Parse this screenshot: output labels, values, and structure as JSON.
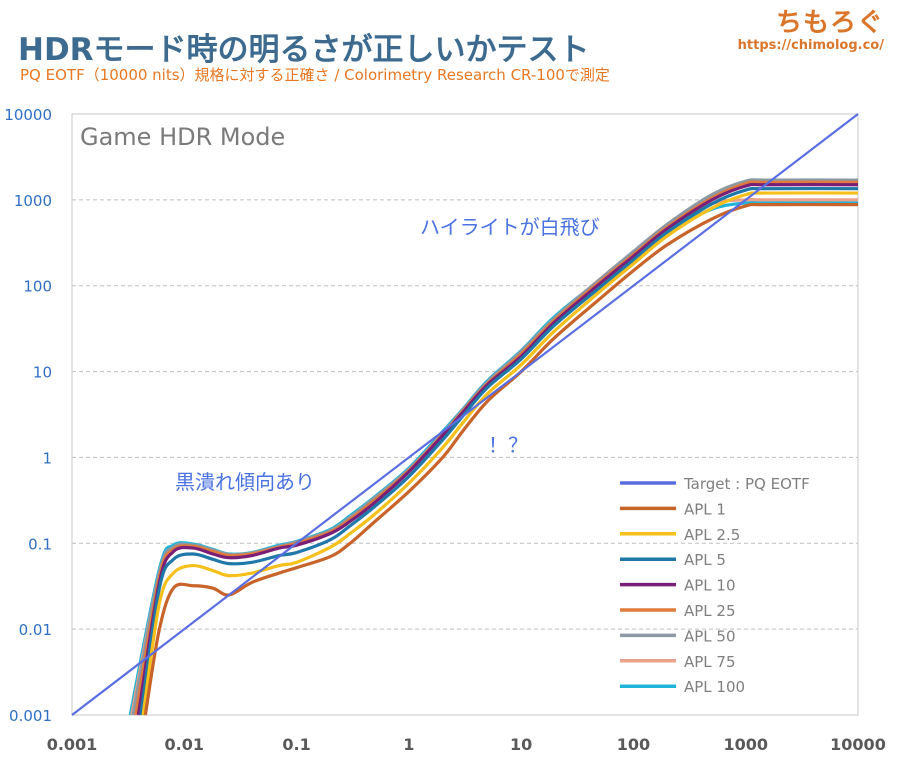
{
  "header": {
    "title": "HDRモード時の明るさが正しいかテスト",
    "subtitle": "PQ EOTF（10000 nits）規格に対する正確さ / Colorimetry Research CR-100で測定",
    "brand": "ちもろぐ",
    "brand_url": "https://chimolog.co/"
  },
  "chart_data": {
    "type": "line",
    "title": "Game HDR Mode",
    "x_scale": "log",
    "y_scale": "log",
    "xlim": [
      0.001,
      10000
    ],
    "ylim": [
      0.001,
      10000
    ],
    "x_ticks": [
      "0.001",
      "0.01",
      "0.1",
      "1",
      "10",
      "100",
      "1000",
      "10000"
    ],
    "y_ticks": [
      "0.001",
      "0.01",
      "0.1",
      "1",
      "10",
      "100",
      "1000",
      "10000"
    ],
    "grid": true,
    "legend_position": "bottom-right",
    "annotations": [
      "ハイライトが白飛び",
      "！？",
      "黒潰れ傾向あり"
    ],
    "annotation_color": "#4a72e0",
    "series": [
      {
        "name": "Target : PQ EOTF",
        "color": "#5b6ee1",
        "x": [
          0.001,
          10000
        ],
        "y": [
          0.001,
          10000
        ]
      },
      {
        "name": "APL 1",
        "color": "#c8642a",
        "x": [
          0.0045,
          0.006,
          0.008,
          0.012,
          0.018,
          0.025,
          0.04,
          0.07,
          0.1,
          0.2,
          0.3,
          0.5,
          1,
          2,
          3,
          5,
          10,
          20,
          50,
          100,
          200,
          500,
          1000,
          1500,
          10000
        ],
        "y": [
          0.001,
          0.01,
          0.03,
          0.032,
          0.03,
          0.025,
          0.035,
          0.045,
          0.052,
          0.07,
          0.1,
          0.18,
          0.4,
          1.0,
          2.0,
          4.5,
          10,
          25,
          70,
          150,
          300,
          600,
          850,
          880,
          880
        ]
      },
      {
        "name": "APL 2.5",
        "color": "#f5c01b",
        "x": [
          0.0043,
          0.006,
          0.008,
          0.012,
          0.018,
          0.025,
          0.04,
          0.07,
          0.1,
          0.2,
          0.3,
          0.5,
          1,
          2,
          3,
          5,
          10,
          20,
          50,
          100,
          200,
          500,
          1000,
          1500,
          10000
        ],
        "y": [
          0.001,
          0.02,
          0.045,
          0.055,
          0.048,
          0.042,
          0.045,
          0.055,
          0.06,
          0.09,
          0.13,
          0.22,
          0.5,
          1.3,
          2.5,
          5.5,
          12,
          30,
          85,
          180,
          380,
          800,
          1150,
          1200,
          1200
        ]
      },
      {
        "name": "APL 5",
        "color": "#1f78a8",
        "x": [
          0.0041,
          0.006,
          0.008,
          0.012,
          0.018,
          0.025,
          0.04,
          0.07,
          0.1,
          0.2,
          0.3,
          0.5,
          1,
          2,
          3,
          5,
          10,
          20,
          50,
          100,
          200,
          500,
          1000,
          1500,
          10000
        ],
        "y": [
          0.001,
          0.03,
          0.065,
          0.075,
          0.065,
          0.058,
          0.06,
          0.072,
          0.078,
          0.11,
          0.16,
          0.27,
          0.6,
          1.6,
          3.0,
          6.5,
          14,
          35,
          95,
          200,
          420,
          900,
          1300,
          1350,
          1350
        ]
      },
      {
        "name": "APL 10",
        "color": "#7a1f78",
        "x": [
          0.0039,
          0.006,
          0.008,
          0.012,
          0.018,
          0.025,
          0.04,
          0.07,
          0.1,
          0.2,
          0.3,
          0.5,
          1,
          2,
          3,
          5,
          10,
          20,
          50,
          100,
          200,
          500,
          1000,
          1500,
          10000
        ],
        "y": [
          0.001,
          0.035,
          0.08,
          0.088,
          0.075,
          0.068,
          0.072,
          0.088,
          0.095,
          0.13,
          0.18,
          0.3,
          0.68,
          1.8,
          3.3,
          7,
          15,
          38,
          105,
          220,
          460,
          1000,
          1450,
          1500,
          1500
        ]
      },
      {
        "name": "APL 25",
        "color": "#e07b3c",
        "x": [
          0.0037,
          0.006,
          0.008,
          0.012,
          0.018,
          0.025,
          0.04,
          0.07,
          0.1,
          0.2,
          0.3,
          0.5,
          1,
          2,
          3,
          5,
          10,
          20,
          50,
          100,
          200,
          500,
          1000,
          1500,
          10000
        ],
        "y": [
          0.001,
          0.04,
          0.085,
          0.092,
          0.08,
          0.072,
          0.075,
          0.09,
          0.1,
          0.135,
          0.19,
          0.32,
          0.7,
          1.85,
          3.4,
          7.2,
          16,
          40,
          110,
          230,
          480,
          1050,
          1550,
          1600,
          1600
        ]
      },
      {
        "name": "APL 50",
        "color": "#8c98a3",
        "x": [
          0.0035,
          0.006,
          0.008,
          0.012,
          0.018,
          0.025,
          0.04,
          0.07,
          0.1,
          0.2,
          0.3,
          0.5,
          1,
          2,
          3,
          5,
          10,
          20,
          50,
          100,
          200,
          500,
          1000,
          1500,
          10000
        ],
        "y": [
          0.001,
          0.045,
          0.09,
          0.095,
          0.083,
          0.074,
          0.077,
          0.092,
          0.103,
          0.14,
          0.2,
          0.34,
          0.72,
          1.9,
          3.5,
          7.5,
          17,
          42,
          118,
          250,
          520,
          1150,
          1650,
          1700,
          1700
        ]
      },
      {
        "name": "APL 75",
        "color": "#eba18a",
        "x": [
          0.0034,
          0.006,
          0.008,
          0.012,
          0.018,
          0.025,
          0.04,
          0.07,
          0.1,
          0.2,
          0.3,
          0.5,
          1,
          2,
          3,
          5,
          10,
          20,
          50,
          100,
          200,
          500,
          1000,
          1500,
          10000
        ],
        "y": [
          0.001,
          0.045,
          0.09,
          0.095,
          0.083,
          0.074,
          0.077,
          0.092,
          0.103,
          0.14,
          0.2,
          0.34,
          0.72,
          1.9,
          3.5,
          7.5,
          17,
          42,
          118,
          240,
          480,
          900,
          1000,
          1000,
          1000
        ]
      },
      {
        "name": "APL 100",
        "color": "#1fb4d8",
        "x": [
          0.0033,
          0.006,
          0.008,
          0.012,
          0.018,
          0.025,
          0.04,
          0.07,
          0.1,
          0.2,
          0.3,
          0.5,
          1,
          2,
          3,
          5,
          10,
          20,
          50,
          100,
          200,
          500,
          1000,
          1500,
          10000
        ],
        "y": [
          0.001,
          0.05,
          0.095,
          0.098,
          0.085,
          0.075,
          0.078,
          0.095,
          0.105,
          0.145,
          0.21,
          0.35,
          0.75,
          2.0,
          3.6,
          7.8,
          17.5,
          44,
          115,
          220,
          420,
          780,
          920,
          930,
          930
        ]
      }
    ]
  }
}
